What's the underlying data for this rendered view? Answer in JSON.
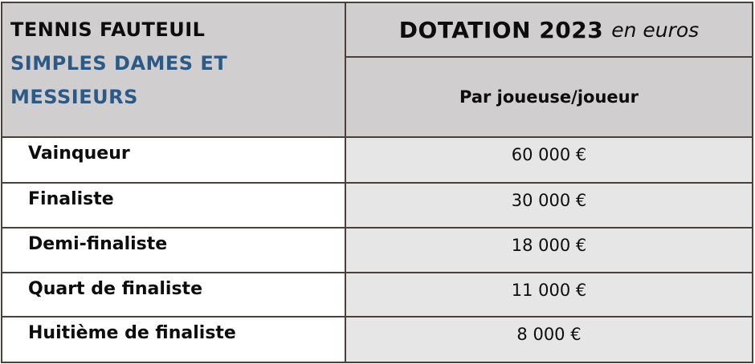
{
  "table": {
    "title_line1": "TENNIS FAUTEUIL",
    "title_line2": "SIMPLES DAMES ET",
    "title_line3": "MESSIEURS",
    "header_main_bold": "DOTATION 2023",
    "header_main_italic": "en euros",
    "header_sub": "Par joueuse/joueur",
    "rows": [
      {
        "label": "Vainqueur",
        "value": "60 000 €"
      },
      {
        "label": "Finaliste",
        "value": "30 000 €"
      },
      {
        "label": "Demi-finaliste",
        "value": "18 000 €"
      },
      {
        "label": "Quart de finaliste",
        "value": "11 000 €"
      },
      {
        "label": "Huitième de finaliste",
        "value": "8 000 €"
      }
    ],
    "colors": {
      "border": "#4a403a",
      "header_bg": "#d0cece",
      "value_bg": "#e7e6e6",
      "label_bg": "#ffffff",
      "accent_blue": "#2b5a87",
      "text": "#0d0d0d"
    }
  }
}
